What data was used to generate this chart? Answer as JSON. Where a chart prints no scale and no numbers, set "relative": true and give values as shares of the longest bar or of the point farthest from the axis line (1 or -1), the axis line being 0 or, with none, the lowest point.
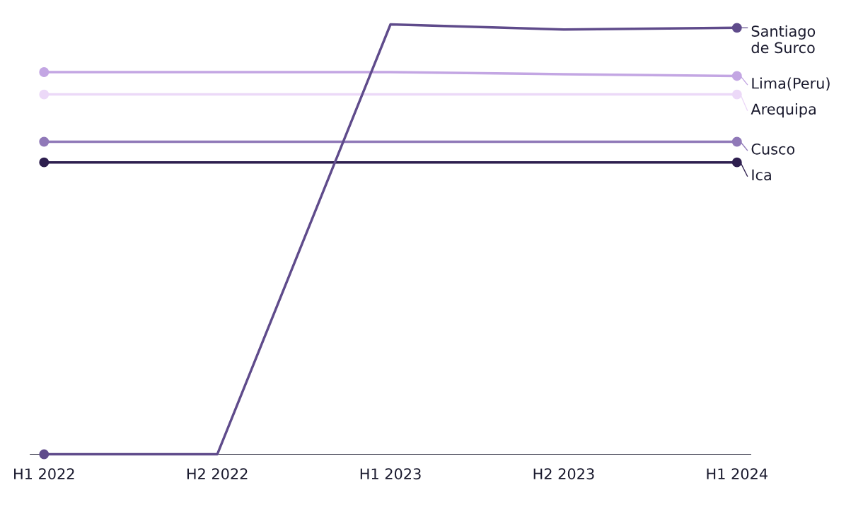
{
  "chart_data": {
    "type": "line",
    "relative": true,
    "categories": [
      "H1 2022",
      "H2 2022",
      "H1 2023",
      "H2 2023",
      "H1 2024"
    ],
    "legend": "right",
    "grid": false,
    "series": [
      {
        "name": "Santiago de Surco",
        "color": "#5f4b8b",
        "values": [
          0,
          0,
          1,
          0.988,
          0.992
        ]
      },
      {
        "name": "Lima(Peru)",
        "color": "#c3a6e3",
        "values": [
          0.889,
          0.889,
          0.889,
          0.884,
          0.88
        ]
      },
      {
        "name": "Arequipa",
        "color": "#ecd9f8",
        "values": [
          0.837,
          0.837,
          0.837,
          0.837,
          0.837
        ]
      },
      {
        "name": "Cusco",
        "color": "#9079b8",
        "values": [
          0.727,
          0.727,
          0.727,
          0.727,
          0.727
        ]
      },
      {
        "name": "Ica",
        "color": "#2e1f4f",
        "values": [
          0.679,
          0.679,
          0.679,
          0.679,
          0.679
        ]
      }
    ]
  }
}
